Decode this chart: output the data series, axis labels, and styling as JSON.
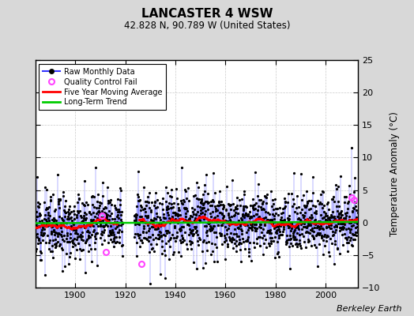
{
  "title": "LANCASTER 4 WSW",
  "subtitle": "42.828 N, 90.789 W (United States)",
  "ylabel": "Temperature Anomaly (°C)",
  "credit": "Berkeley Earth",
  "xlim": [
    1884,
    2013
  ],
  "ylim": [
    -10,
    25
  ],
  "yticks": [
    -10,
    -5,
    0,
    5,
    10,
    15,
    20,
    25
  ],
  "xticks": [
    1900,
    1920,
    1940,
    1960,
    1980,
    2000
  ],
  "x_start": 1884,
  "x_end": 2013,
  "seed": 12,
  "bg_color": "#d8d8d8",
  "plot_bg_color": "#ffffff",
  "blue_line_color": "#3333ff",
  "dot_color": "#000000",
  "ma_color": "#ff0000",
  "trend_color": "#00cc00",
  "qc_fail_color": "#ff44ff",
  "gap_start": 1919.0,
  "gap_end": 1923.5,
  "noise_scale": 2.5,
  "ma_window": 60
}
